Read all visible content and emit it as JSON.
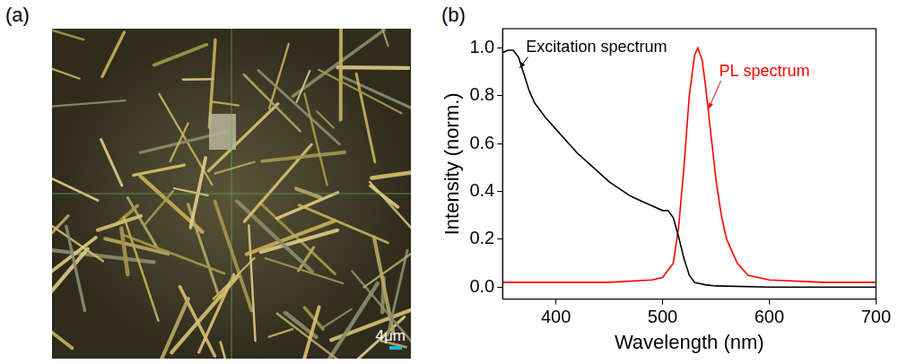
{
  "panel_a": {
    "letter": "(a)",
    "scale_bar_label": "4μm"
  },
  "chart_data": {
    "letter": "(b)",
    "type": "line",
    "x_label": "Wavelength (nm)",
    "y_label": "Intensity (norm.)",
    "xlim": [
      350,
      700
    ],
    "xticks": [
      400,
      500,
      600,
      700
    ],
    "ylim": [
      -0.05,
      1.08
    ],
    "yticks": [
      {
        "value": 0,
        "label": "0.0"
      },
      {
        "value": 0.2,
        "label": "0.2"
      },
      {
        "value": 0.4,
        "label": "0.4"
      },
      {
        "value": 0.6,
        "label": "0.6"
      },
      {
        "value": 0.8,
        "label": "0.8"
      },
      {
        "value": 1,
        "label": "1.0"
      }
    ],
    "grid": false,
    "series": [
      {
        "name": "Excitation spectrum",
        "color": "#000000",
        "x": [
          350,
          355,
          360,
          365,
          370,
          375,
          380,
          390,
          400,
          410,
          420,
          430,
          440,
          450,
          460,
          470,
          480,
          490,
          500,
          505,
          510,
          515,
          520,
          525,
          530,
          540,
          550,
          600,
          650,
          700
        ],
        "values": [
          0.98,
          0.99,
          0.99,
          0.96,
          0.89,
          0.82,
          0.77,
          0.71,
          0.66,
          0.61,
          0.56,
          0.52,
          0.48,
          0.44,
          0.41,
          0.38,
          0.36,
          0.34,
          0.32,
          0.32,
          0.29,
          0.21,
          0.12,
          0.05,
          0.02,
          0.01,
          0.005,
          0,
          0,
          0
        ]
      },
      {
        "name": "PL spectrum",
        "color": "#ff0000",
        "x": [
          350,
          400,
          450,
          490,
          500,
          510,
          515,
          520,
          525,
          530,
          533,
          537,
          540,
          545,
          550,
          555,
          560,
          570,
          580,
          600,
          650,
          700
        ],
        "values": [
          0.02,
          0.02,
          0.02,
          0.03,
          0.04,
          0.1,
          0.25,
          0.5,
          0.8,
          0.97,
          1,
          0.95,
          0.85,
          0.65,
          0.45,
          0.3,
          0.2,
          0.1,
          0.05,
          0.03,
          0.02,
          0.02
        ]
      }
    ]
  }
}
